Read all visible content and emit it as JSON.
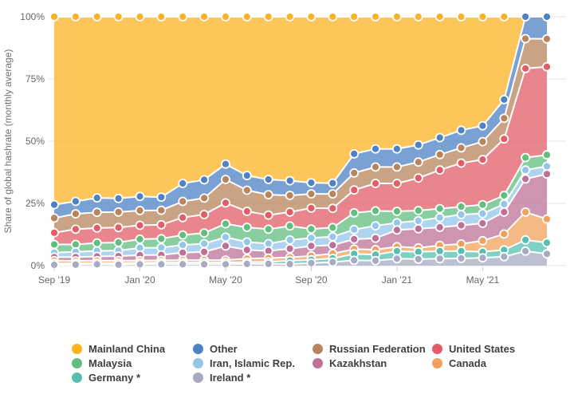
{
  "chart_data": {
    "type": "area",
    "stacked": true,
    "stacking": "percent",
    "title": "",
    "xlabel": "",
    "ylabel": "Share of global hashrate (monthly average)",
    "ylim": [
      0,
      100
    ],
    "grid": "horizontal-only",
    "legend_position": "bottom",
    "marker_style": "circle-white-border",
    "yticks": [
      {
        "value": 0,
        "label": "0%"
      },
      {
        "value": 25,
        "label": "25%"
      },
      {
        "value": 50,
        "label": "50%"
      },
      {
        "value": 75,
        "label": "75%"
      },
      {
        "value": 100,
        "label": "100%"
      }
    ],
    "categories": [
      "Sep '19",
      "Oct '19",
      "Nov '19",
      "Dec '19",
      "Jan '20",
      "Feb '20",
      "Mar '20",
      "Apr '20",
      "May '20",
      "Jun '20",
      "Jul '20",
      "Aug '20",
      "Sep '20",
      "Oct '20",
      "Nov '20",
      "Dec '20",
      "Jan '21",
      "Feb '21",
      "Mar '21",
      "Apr '21",
      "May '21",
      "Jun '21",
      "Jul '21",
      "Aug '21"
    ],
    "visible_xticks": [
      {
        "index": 0,
        "label": "Sep '19"
      },
      {
        "index": 4,
        "label": "Jan '20"
      },
      {
        "index": 8,
        "label": "May '20"
      },
      {
        "index": 12,
        "label": "Sep '20"
      },
      {
        "index": 16,
        "label": "Jan '21"
      },
      {
        "index": 20,
        "label": "May '21"
      }
    ],
    "unit": "%",
    "series": [
      {
        "name": "Ireland *",
        "color": "#a7abc1",
        "values": [
          0.3,
          0.4,
          0.5,
          0.4,
          0.5,
          0.5,
          0.5,
          0.5,
          0.5,
          0.7,
          0.7,
          0.6,
          1.0,
          1.4,
          2.1,
          2.0,
          2.8,
          2.6,
          2.8,
          2.9,
          3.1,
          3.6,
          5.8,
          4.7
        ]
      },
      {
        "name": "Germany *",
        "color": "#55c0af",
        "values": [
          0.6,
          0.5,
          0.5,
          0.6,
          0.6,
          0.7,
          0.7,
          0.7,
          0.7,
          0.7,
          0.8,
          1.4,
          1.3,
          1.5,
          2.6,
          2.4,
          3.0,
          2.9,
          3.0,
          2.9,
          2.4,
          2.7,
          4.5,
          4.5
        ]
      },
      {
        "name": "Canada",
        "color": "#f0a15c",
        "values": [
          1.1,
          1.0,
          1.0,
          1.0,
          0.9,
          0.9,
          1.0,
          1.0,
          1.0,
          1.4,
          1.5,
          1.3,
          1.6,
          1.9,
          1.9,
          2.0,
          1.8,
          1.6,
          2.3,
          2.9,
          4.5,
          6.4,
          11.2,
          9.5
        ]
      },
      {
        "name": "Kazakhstan",
        "color": "#be7198",
        "values": [
          1.4,
          1.5,
          1.7,
          1.8,
          2.2,
          2.2,
          3.0,
          3.3,
          5.7,
          3.5,
          2.9,
          3.5,
          4.0,
          3.4,
          4.0,
          4.6,
          6.7,
          7.7,
          7.3,
          7.5,
          7.0,
          8.8,
          13.3,
          18.1
        ]
      },
      {
        "name": "Iran, Islamic Rep.",
        "color": "#94c6ea",
        "values": [
          1.8,
          2.1,
          2.2,
          2.2,
          2.9,
          2.9,
          3.1,
          3.3,
          3.5,
          3.2,
          2.9,
          3.5,
          3.2,
          3.4,
          3.9,
          5.0,
          2.9,
          3.2,
          3.9,
          4.3,
          3.9,
          3.2,
          3.6,
          3.1
        ]
      },
      {
        "name": "Malaysia",
        "color": "#61be7e",
        "values": [
          3.3,
          3.0,
          3.2,
          3.3,
          3.5,
          3.6,
          4.0,
          4.3,
          5.4,
          5.9,
          5.8,
          5.6,
          3.6,
          3.7,
          6.7,
          6.0,
          4.6,
          4.1,
          3.6,
          3.2,
          3.6,
          3.5,
          5.0,
          4.6
        ]
      },
      {
        "name": "United States",
        "color": "#e25d67",
        "values": [
          4.7,
          6.1,
          6.0,
          6.0,
          5.6,
          5.6,
          7.0,
          7.4,
          8.4,
          6.4,
          5.7,
          5.6,
          8.4,
          7.7,
          9.2,
          11.0,
          11.2,
          13.1,
          15.5,
          17.5,
          18.1,
          22.7,
          35.8,
          35.4
        ]
      },
      {
        "name": "Russian Federation",
        "color": "#b8845c",
        "values": [
          5.9,
          6.2,
          6.3,
          6.2,
          5.9,
          5.8,
          6.5,
          6.6,
          9.4,
          8.5,
          8.2,
          6.7,
          5.7,
          5.8,
          6.8,
          6.6,
          6.6,
          6.4,
          6.2,
          6.1,
          7.2,
          8.3,
          12.0,
          11.2
        ]
      },
      {
        "name": "Other",
        "color": "#4e82c4",
        "values": [
          5.4,
          5.0,
          5.8,
          5.5,
          5.7,
          5.3,
          7.2,
          7.4,
          6.2,
          5.9,
          6.1,
          5.9,
          4.5,
          4.3,
          7.7,
          7.3,
          7.3,
          6.9,
          6.8,
          7.1,
          6.4,
          7.5,
          8.8,
          8.9
        ]
      },
      {
        "name": "Mainland China",
        "color": "#fbb324",
        "values": [
          75.5,
          74.2,
          72.8,
          73.0,
          72.2,
          72.5,
          67.0,
          65.5,
          59.2,
          63.8,
          65.4,
          65.9,
          66.7,
          66.9,
          55.1,
          53.1,
          53.1,
          51.5,
          48.6,
          45.6,
          43.8,
          33.3,
          0.0,
          0.0
        ]
      }
    ]
  },
  "legend": {
    "columns": [
      {
        "items": [
          {
            "label": "Mainland China",
            "color": "#fbb324"
          },
          {
            "label": "Malaysia",
            "color": "#61be7e"
          },
          {
            "label": "Germany *",
            "color": "#55c0af"
          }
        ]
      },
      {
        "items": [
          {
            "label": "Other",
            "color": "#4e82c4"
          },
          {
            "label": "Iran, Islamic Rep.",
            "color": "#94c6ea"
          },
          {
            "label": "Ireland *",
            "color": "#a7abc1"
          }
        ]
      },
      {
        "items": [
          {
            "label": "Russian Federation",
            "color": "#b8845c"
          },
          {
            "label": "Kazakhstan",
            "color": "#be7198"
          }
        ]
      },
      {
        "items": [
          {
            "label": "United States",
            "color": "#e25d67"
          },
          {
            "label": "Canada",
            "color": "#f0a15c"
          }
        ]
      }
    ]
  },
  "style": {
    "grid_color": "#e6e6e6",
    "tick_color": "#cccccc",
    "axis_text_color": "#666666",
    "band_fill_opacity": 0.75,
    "boundary_stroke": "#ffffff"
  }
}
